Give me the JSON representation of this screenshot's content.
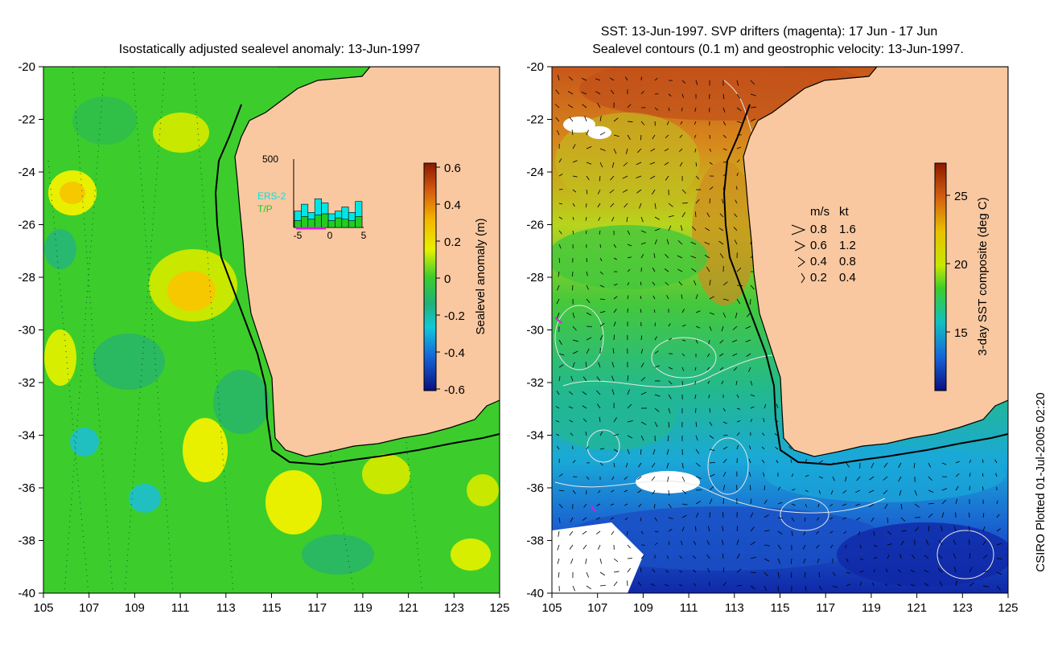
{
  "left_panel": {
    "title": "Isostatically adjusted sealevel anomaly: 13-Jun-1997",
    "colorbar": {
      "label": "Sealevel anomaly (m)",
      "ticks": [
        "0.6",
        "0.4",
        "0.2",
        "0",
        "-0.2",
        "-0.4",
        "-0.6"
      ]
    },
    "inset": {
      "ymax_label": "500",
      "x_ticks": [
        "-5",
        "0",
        "5"
      ],
      "legend": [
        {
          "text": "ERS-2",
          "color": "#00e5e5"
        },
        {
          "text": "T/P",
          "color": "#22cc22"
        }
      ],
      "bars_cyan": [
        120,
        170,
        110,
        210,
        180,
        100,
        120,
        150,
        110,
        190
      ],
      "bars_green": [
        50,
        80,
        60,
        90,
        100,
        50,
        70,
        60,
        50,
        80
      ],
      "ymax_value": 500
    }
  },
  "right_panel": {
    "title_line1": "SST: 13-Jun-1997. SVP drifters (magenta): 17 Jun - 17 Jun",
    "title_line2": "Sealevel contours (0.1 m) and geostrophic velocity: 13-Jun-1997.",
    "colorbar": {
      "label": "3-day SST composite (deg C)",
      "ticks": [
        "25",
        "20",
        "15"
      ]
    },
    "velocity_legend": {
      "header_ms": "m/s",
      "header_kt": "kt",
      "rows": [
        {
          "ms": "0.8",
          "kt": "1.6"
        },
        {
          "ms": "0.6",
          "kt": "1.2"
        },
        {
          "ms": "0.4",
          "kt": "0.8"
        },
        {
          "ms": "0.2",
          "kt": "0.4"
        }
      ]
    }
  },
  "axes": {
    "x_ticks": [
      "105",
      "107",
      "109",
      "111",
      "113",
      "115",
      "117",
      "119",
      "121",
      "123",
      "125"
    ],
    "y_ticks": [
      "-20",
      "-22",
      "-24",
      "-26",
      "-28",
      "-30",
      "-32",
      "-34",
      "-36",
      "-38",
      "-40"
    ]
  },
  "credit": "CSIRO Plotted 01-Jul-2005 02:20",
  "colors": {
    "land": "#f9c8a0",
    "ocean_green": "#3ccd2c",
    "warm": "#d07a18",
    "cold": "#1a4fc4"
  }
}
